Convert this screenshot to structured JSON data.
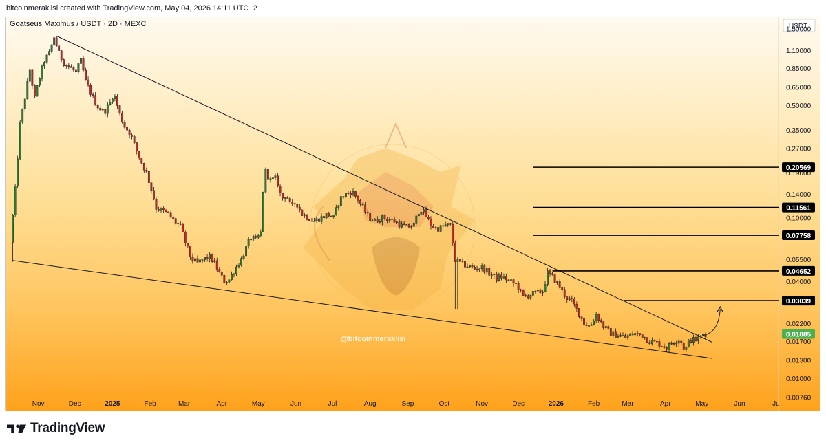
{
  "header": {
    "creator_line": "bitcoinmeraklisi created with TradingView.com, May 04, 2026 14:11 UTC+2"
  },
  "symbol": {
    "title": "Goatseus Maximus / USDT · 2D · MEXC"
  },
  "watermark": "@bitcoinmeraklisi",
  "footer": {
    "logo_text": "TradingView"
  },
  "colors": {
    "background_top": "#fff1d6",
    "background_bottom": "#ffa41e",
    "up_candle": "#2e7d32",
    "down_candle": "#c62828",
    "current_price": "#4caf50",
    "level_label_bg": "#000000"
  },
  "chart_data": {
    "type": "candlestick",
    "title": "Goatseus Maximus / USDT · 2D · MEXC",
    "y_axis": {
      "unit": "USDT",
      "scale": "log",
      "range": [
        0.0068,
        1.6
      ],
      "ticks": [
        1.5,
        1.1,
        0.85,
        0.65,
        0.5,
        0.35,
        0.27,
        0.19,
        0.14,
        0.1,
        0.055,
        0.04,
        0.022,
        0.017,
        0.013,
        0.01,
        0.0076
      ],
      "tick_labels": [
        "1.50000",
        "1.10000",
        "0.85000",
        "0.65000",
        "0.50000",
        "0.35000",
        "0.27000",
        "0.19000",
        "0.14000",
        "0.10000",
        "0.05500",
        "0.04000",
        "0.02200",
        "0.01700",
        "0.01300",
        "0.01000",
        "0.00760"
      ]
    },
    "x_axis": {
      "range": [
        "2024-10-05",
        "2026-07-03"
      ],
      "ticks": [
        {
          "date": "2024-11-01",
          "label": "Nov",
          "bold": false
        },
        {
          "date": "2024-12-01",
          "label": "Dec",
          "bold": false
        },
        {
          "date": "2025-01-01",
          "label": "2025",
          "bold": true
        },
        {
          "date": "2025-02-01",
          "label": "Feb",
          "bold": false
        },
        {
          "date": "2025-03-01",
          "label": "Mar",
          "bold": false
        },
        {
          "date": "2025-04-01",
          "label": "Apr",
          "bold": false
        },
        {
          "date": "2025-05-01",
          "label": "May",
          "bold": false
        },
        {
          "date": "2025-06-01",
          "label": "Jun",
          "bold": false
        },
        {
          "date": "2025-07-01",
          "label": "Jul",
          "bold": false
        },
        {
          "date": "2025-08-01",
          "label": "Aug",
          "bold": false
        },
        {
          "date": "2025-09-01",
          "label": "Sep",
          "bold": false
        },
        {
          "date": "2025-10-01",
          "label": "Oct",
          "bold": false
        },
        {
          "date": "2025-11-01",
          "label": "Nov",
          "bold": false
        },
        {
          "date": "2025-12-01",
          "label": "Dec",
          "bold": false
        },
        {
          "date": "2026-01-01",
          "label": "2026",
          "bold": true
        },
        {
          "date": "2026-02-01",
          "label": "Feb",
          "bold": false
        },
        {
          "date": "2026-03-01",
          "label": "Mar",
          "bold": false
        },
        {
          "date": "2026-04-01",
          "label": "Apr",
          "bold": false
        },
        {
          "date": "2026-05-01",
          "label": "May",
          "bold": false
        },
        {
          "date": "2026-06-01",
          "label": "Jun",
          "bold": false
        },
        {
          "date": "2026-07-01",
          "label": "Ju",
          "bold": false
        }
      ]
    },
    "price_path": [
      [
        "2024-10-11",
        0.07
      ],
      [
        "2024-10-15",
        0.15
      ],
      [
        "2024-10-19",
        0.38
      ],
      [
        "2024-10-23",
        0.56
      ],
      [
        "2024-10-27",
        0.83
      ],
      [
        "2024-10-31",
        0.55
      ],
      [
        "2024-11-03",
        0.7
      ],
      [
        "2024-11-08",
        0.95
      ],
      [
        "2024-11-12",
        1.05
      ],
      [
        "2024-11-16",
        1.33
      ],
      [
        "2024-11-20",
        1.05
      ],
      [
        "2024-11-24",
        0.92
      ],
      [
        "2024-11-29",
        0.86
      ],
      [
        "2024-12-04",
        0.8
      ],
      [
        "2024-12-08",
        0.95
      ],
      [
        "2024-12-12",
        0.7
      ],
      [
        "2024-12-16",
        0.6
      ],
      [
        "2024-12-21",
        0.5
      ],
      [
        "2024-12-27",
        0.45
      ],
      [
        "2025-01-01",
        0.52
      ],
      [
        "2025-01-04",
        0.6
      ],
      [
        "2025-01-09",
        0.44
      ],
      [
        "2025-01-13",
        0.37
      ],
      [
        "2025-01-18",
        0.33
      ],
      [
        "2025-01-22",
        0.27
      ],
      [
        "2025-01-27",
        0.22
      ],
      [
        "2025-01-31",
        0.19
      ],
      [
        "2025-02-04",
        0.15
      ],
      [
        "2025-02-08",
        0.115
      ],
      [
        "2025-02-13",
        0.11
      ],
      [
        "2025-02-18",
        0.105
      ],
      [
        "2025-02-23",
        0.095
      ],
      [
        "2025-02-28",
        0.088
      ],
      [
        "2025-03-04",
        0.07
      ],
      [
        "2025-03-09",
        0.055
      ],
      [
        "2025-03-14",
        0.052
      ],
      [
        "2025-03-19",
        0.055
      ],
      [
        "2025-03-24",
        0.057
      ],
      [
        "2025-03-28",
        0.052
      ],
      [
        "2025-04-01",
        0.045
      ],
      [
        "2025-04-05",
        0.04
      ],
      [
        "2025-04-09",
        0.041
      ],
      [
        "2025-04-14",
        0.048
      ],
      [
        "2025-04-19",
        0.055
      ],
      [
        "2025-04-23",
        0.065
      ],
      [
        "2025-04-27",
        0.075
      ],
      [
        "2025-05-01",
        0.072
      ],
      [
        "2025-05-05",
        0.08
      ],
      [
        "2025-05-08",
        0.2
      ],
      [
        "2025-05-13",
        0.17
      ],
      [
        "2025-05-18",
        0.175
      ],
      [
        "2025-05-22",
        0.13
      ],
      [
        "2025-05-26",
        0.14
      ],
      [
        "2025-05-30",
        0.115
      ],
      [
        "2025-06-03",
        0.125
      ],
      [
        "2025-06-08",
        0.105
      ],
      [
        "2025-06-13",
        0.1
      ],
      [
        "2025-06-18",
        0.095
      ],
      [
        "2025-06-24",
        0.1
      ],
      [
        "2025-06-29",
        0.105
      ],
      [
        "2025-07-04",
        0.1
      ],
      [
        "2025-07-09",
        0.13
      ],
      [
        "2025-07-14",
        0.14
      ],
      [
        "2025-07-19",
        0.145
      ],
      [
        "2025-07-24",
        0.13
      ],
      [
        "2025-07-28",
        0.115
      ],
      [
        "2025-08-02",
        0.1
      ],
      [
        "2025-08-07",
        0.095
      ],
      [
        "2025-08-13",
        0.1
      ],
      [
        "2025-08-18",
        0.098
      ],
      [
        "2025-08-23",
        0.095
      ],
      [
        "2025-08-28",
        0.09
      ],
      [
        "2025-09-02",
        0.087
      ],
      [
        "2025-09-08",
        0.09
      ],
      [
        "2025-09-13",
        0.115
      ],
      [
        "2025-09-17",
        0.105
      ],
      [
        "2025-09-22",
        0.09
      ],
      [
        "2025-09-27",
        0.085
      ],
      [
        "2025-10-01",
        0.087
      ],
      [
        "2025-10-05",
        0.09
      ],
      [
        "2025-10-09",
        0.088
      ],
      [
        "2025-10-11",
        0.055
      ],
      [
        "2025-10-16",
        0.052
      ],
      [
        "2025-10-22",
        0.05
      ],
      [
        "2025-10-28",
        0.048
      ],
      [
        "2025-11-03",
        0.049
      ],
      [
        "2025-11-09",
        0.045
      ],
      [
        "2025-11-15",
        0.042
      ],
      [
        "2025-11-20",
        0.043
      ],
      [
        "2025-11-26",
        0.04
      ],
      [
        "2025-12-02",
        0.038
      ],
      [
        "2025-12-07",
        0.032
      ],
      [
        "2025-12-12",
        0.033
      ],
      [
        "2025-12-18",
        0.034
      ],
      [
        "2025-12-23",
        0.035
      ],
      [
        "2025-12-27",
        0.045
      ],
      [
        "2026-01-01",
        0.042
      ],
      [
        "2026-01-06",
        0.037
      ],
      [
        "2026-01-11",
        0.032
      ],
      [
        "2026-01-16",
        0.03
      ],
      [
        "2026-01-21",
        0.026
      ],
      [
        "2026-01-26",
        0.022
      ],
      [
        "2026-01-31",
        0.021
      ],
      [
        "2026-02-05",
        0.025
      ],
      [
        "2026-02-11",
        0.021
      ],
      [
        "2026-02-17",
        0.019
      ],
      [
        "2026-02-23",
        0.0185
      ],
      [
        "2026-03-01",
        0.018
      ],
      [
        "2026-03-08",
        0.019
      ],
      [
        "2026-03-15",
        0.0185
      ],
      [
        "2026-03-21",
        0.017
      ],
      [
        "2026-03-28",
        0.0165
      ],
      [
        "2026-04-04",
        0.0155
      ],
      [
        "2026-04-10",
        0.017
      ],
      [
        "2026-04-15",
        0.0175
      ],
      [
        "2026-04-19",
        0.0148
      ],
      [
        "2026-04-23",
        0.0175
      ],
      [
        "2026-04-27",
        0.0172
      ],
      [
        "2026-05-01",
        0.0178
      ],
      [
        "2026-05-04",
        0.01885
      ]
    ],
    "anomalous_wicks": [
      {
        "date": "2024-10-11",
        "low": 0.053
      },
      {
        "date": "2025-10-11",
        "low": 0.027
      }
    ],
    "trendlines": [
      {
        "name": "upper",
        "from": [
          "2024-11-16",
          1.35
        ],
        "to": [
          "2026-05-09",
          0.0168
        ]
      },
      {
        "name": "lower",
        "from": [
          "2024-10-11",
          0.054
        ],
        "to": [
          "2026-05-09",
          0.0133
        ]
      }
    ],
    "horizontal_levels": [
      {
        "value": 0.20569,
        "label": "0.20569",
        "from_date": "2025-12-13"
      },
      {
        "value": 0.11561,
        "label": "0.11561",
        "from_date": "2025-12-13"
      },
      {
        "value": 0.07758,
        "label": "0.07758",
        "from_date": "2025-12-13"
      },
      {
        "value": 0.04652,
        "label": "0.04652",
        "from_date": "2025-12-29"
      },
      {
        "value": 0.03039,
        "label": "0.03039",
        "from_date": "2026-02-26"
      }
    ],
    "current_price": {
      "value": 0.01885,
      "label": "0.01885"
    },
    "projection_arrow": {
      "from": [
        "2026-05-02",
        0.0185
      ],
      "to": [
        "2026-05-16",
        0.027
      ]
    }
  }
}
